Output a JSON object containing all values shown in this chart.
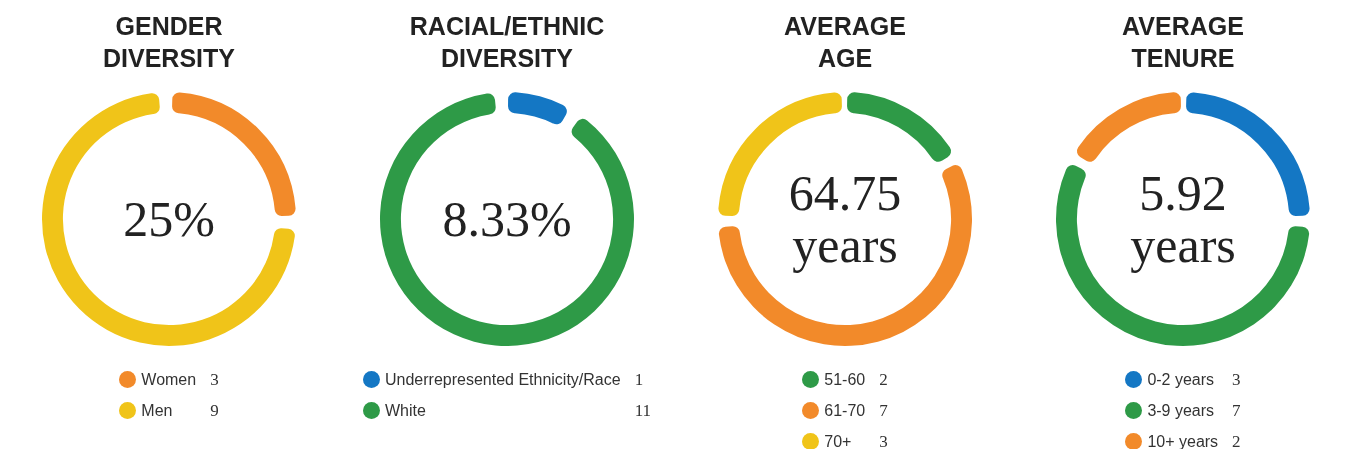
{
  "chart_data": [
    {
      "type": "donut",
      "title": "GENDER\nDIVERSITY",
      "categories": [
        "Women",
        "Men"
      ],
      "values": [
        3,
        9
      ],
      "colors": [
        "#f28a2a",
        "#f0c419"
      ],
      "annotations": [
        "25%"
      ],
      "legend": "bottom",
      "data_labels": true
    },
    {
      "type": "donut",
      "title": "RACIAL/ETHNIC\nDIVERSITY",
      "categories": [
        "Underrepresented Ethnicity/Race",
        "White"
      ],
      "values": [
        1,
        11
      ],
      "colors": [
        "#1477c4",
        "#2e9a47"
      ],
      "annotations": [
        "8.33%"
      ],
      "legend": "bottom",
      "data_labels": true
    },
    {
      "type": "donut",
      "title": "AVERAGE\nAGE",
      "categories": [
        "51-60",
        "61-70",
        "70+"
      ],
      "values": [
        2,
        7,
        3
      ],
      "colors": [
        "#2e9a47",
        "#f28a2a",
        "#f0c419"
      ],
      "annotations": [
        "64.75\nyears"
      ],
      "legend": "bottom",
      "data_labels": true
    },
    {
      "type": "donut",
      "title": "AVERAGE\nTENURE",
      "categories": [
        "0-2 years",
        "3-9 years",
        "10+ years"
      ],
      "values": [
        3,
        7,
        2
      ],
      "colors": [
        "#1477c4",
        "#2e9a47",
        "#f28a2a"
      ],
      "annotations": [
        "5.92\nyears"
      ],
      "legend": "bottom",
      "data_labels": true
    }
  ]
}
